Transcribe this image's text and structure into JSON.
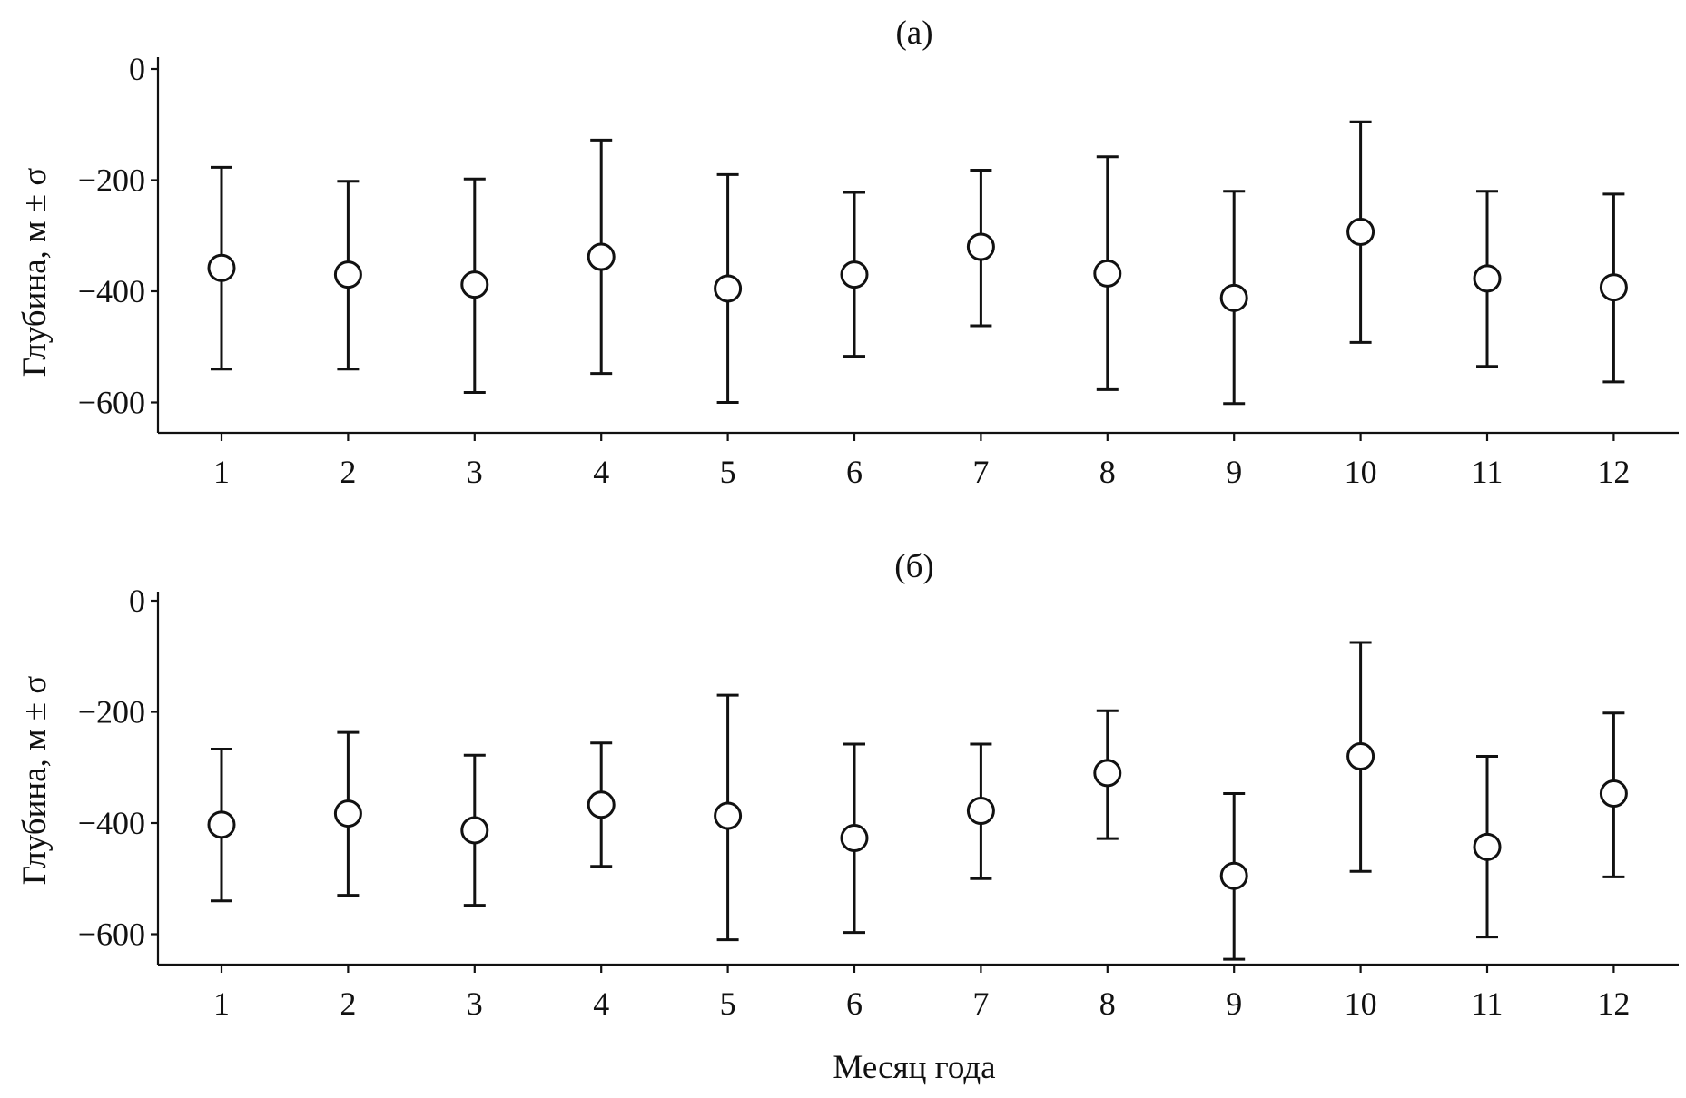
{
  "chart_data": [
    {
      "type": "scatter",
      "title": "(а)",
      "ylabel": "Глубина, м ± σ",
      "xlabel": "",
      "x": [
        1,
        2,
        3,
        4,
        5,
        6,
        7,
        8,
        9,
        10,
        11,
        12
      ],
      "y": [
        -358,
        -370,
        -388,
        -338,
        -395,
        -370,
        -320,
        -368,
        -412,
        -293,
        -377,
        -393
      ],
      "yerr_low": [
        -540,
        -540,
        -582,
        -548,
        -600,
        -517,
        -462,
        -577,
        -602,
        -492,
        -535,
        -563
      ],
      "yerr_high": [
        -177,
        -202,
        -198,
        -128,
        -190,
        -222,
        -182,
        -158,
        -220,
        -95,
        -220,
        -225
      ],
      "xlim": [
        0.5,
        12.55
      ],
      "ylim": [
        -660,
        0
      ],
      "xticks": [
        "1",
        "2",
        "3",
        "4",
        "5",
        "6",
        "7",
        "8",
        "9",
        "10",
        "11",
        "12"
      ],
      "yticks": [
        0,
        -200,
        -400,
        -600
      ],
      "ytick_labels": [
        "0",
        "−200",
        "−400",
        "−600"
      ],
      "grid": false,
      "legend": "none",
      "marker": "open-circle",
      "color": "#111111"
    },
    {
      "type": "scatter",
      "title": "(б)",
      "ylabel": "Глубина, м ± σ",
      "xlabel": "Месяц года",
      "x": [
        1,
        2,
        3,
        4,
        5,
        6,
        7,
        8,
        9,
        10,
        11,
        12
      ],
      "y": [
        -403,
        -383,
        -413,
        -367,
        -387,
        -427,
        -378,
        -310,
        -495,
        -280,
        -443,
        -347
      ],
      "yerr_low": [
        -540,
        -530,
        -548,
        -478,
        -610,
        -597,
        -500,
        -428,
        -645,
        -487,
        -605,
        -497
      ],
      "yerr_high": [
        -267,
        -237,
        -278,
        -256,
        -170,
        -258,
        -258,
        -198,
        -347,
        -75,
        -280,
        -202
      ],
      "xlim": [
        0.5,
        12.55
      ],
      "ylim": [
        -660,
        0
      ],
      "xticks": [
        "1",
        "2",
        "3",
        "4",
        "5",
        "6",
        "7",
        "8",
        "9",
        "10",
        "11",
        "12"
      ],
      "yticks": [
        0,
        -200,
        -400,
        -600
      ],
      "ytick_labels": [
        "0",
        "−200",
        "−400",
        "−600"
      ],
      "grid": false,
      "legend": "none",
      "marker": "open-circle",
      "color": "#111111"
    }
  ]
}
